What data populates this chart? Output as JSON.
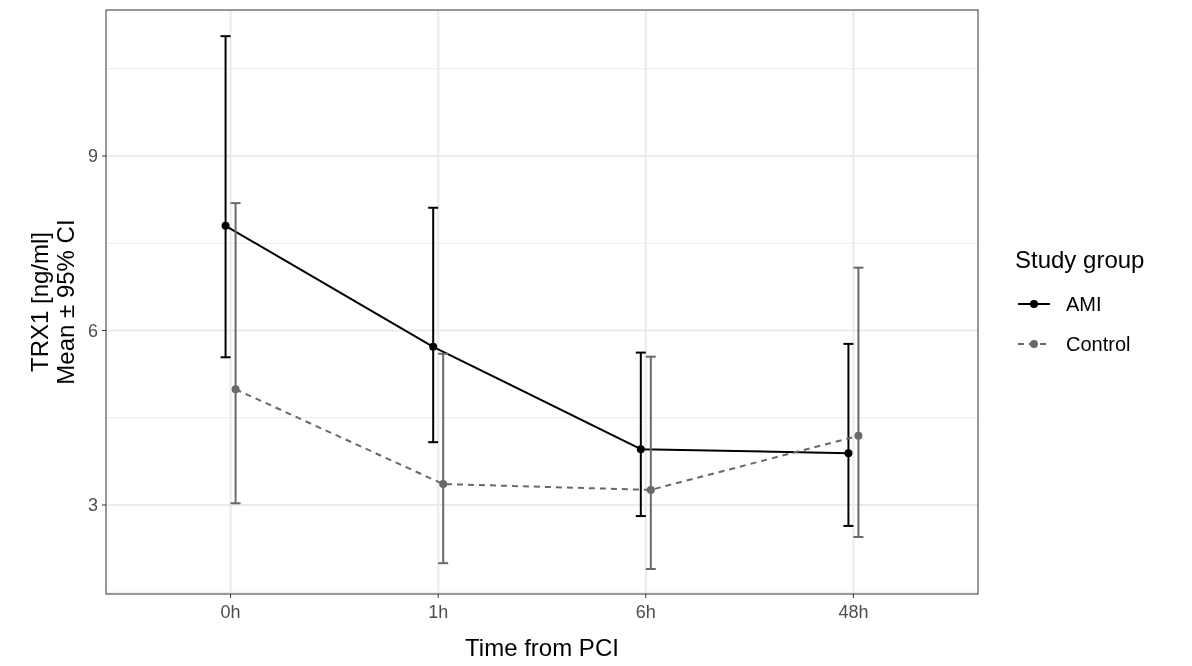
{
  "chart_data": {
    "type": "line",
    "xlabel": "Time from PCI",
    "ylabel": "TRX1 [ng/ml]\nMean ± 95% CI",
    "legend_title": "Study group",
    "categories": [
      "0h",
      "1h",
      "6h",
      "48h"
    ],
    "series": [
      {
        "name": "AMI",
        "color": "#000000",
        "values": [
          7.8,
          5.72,
          3.96,
          3.89
        ],
        "errors": [
          [
            5.54,
            11.06
          ],
          [
            4.08,
            8.11
          ],
          [
            2.81,
            5.62
          ],
          [
            2.64,
            5.77
          ]
        ],
        "line_style": "solid"
      },
      {
        "name": "Control",
        "color": "#696969",
        "values": [
          4.99,
          3.36,
          3.26,
          4.19
        ],
        "errors": [
          [
            3.03,
            8.19
          ],
          [
            2.0,
            5.6
          ],
          [
            1.9,
            5.55
          ],
          [
            2.45,
            7.08
          ]
        ],
        "line_style": "dashed"
      }
    ],
    "ylim": [
      1.47,
      11.51
    ],
    "yticks": [
      {
        "value": 1.5,
        "label": null
      },
      3,
      {
        "value": 4.5,
        "label": null
      },
      6,
      {
        "value": 7.5,
        "label": null
      },
      9,
      {
        "value": 10.5,
        "label": null
      }
    ],
    "grid": true,
    "legend": "right",
    "marker": "circle"
  }
}
